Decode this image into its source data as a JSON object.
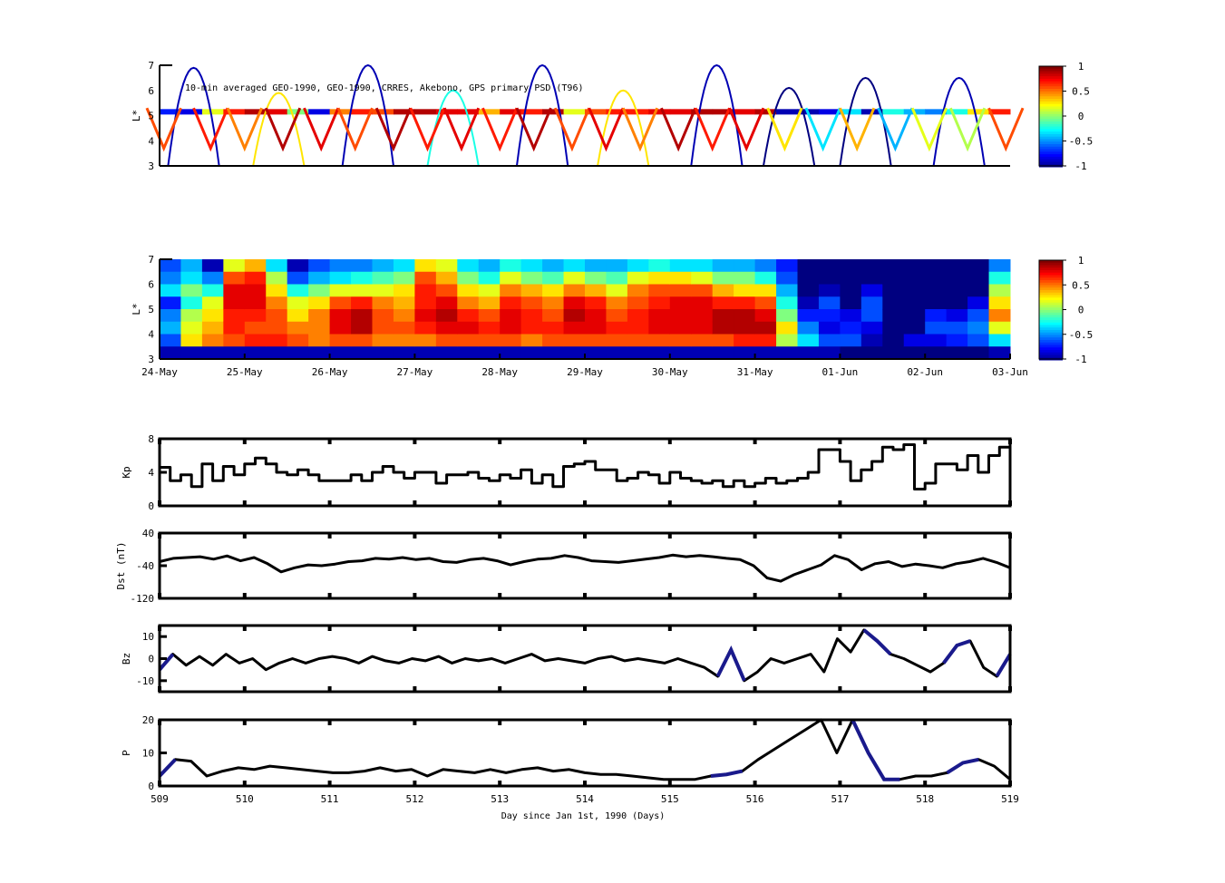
{
  "chart_data": [
    {
      "type": "heatmap",
      "title": "10-min averaged GEO-1990, GEO-1990, CRRES, Akebono, GPS  primary PSD (T96)",
      "ylabel": "L*",
      "ylim": [
        3,
        7
      ],
      "yticks": [
        "3",
        "4",
        "5",
        "6",
        "7"
      ],
      "xlim": [
        509,
        519
      ],
      "colorbar": {
        "range": [
          -1,
          1
        ],
        "ticks": [
          "1",
          "0.5",
          "0",
          "-0.5",
          "-1"
        ],
        "colormap": "jet"
      },
      "geo_track": {
        "L": 5.15,
        "step_days": 0.25,
        "values": [
          -0.7,
          -0.8,
          0.2,
          0.7,
          0.9,
          0.8,
          0.0,
          -0.8,
          0.5,
          0.7,
          0.6,
          0.9,
          0.9,
          0.8,
          0.8,
          0.4,
          0.8,
          0.7,
          0.9,
          0.2,
          0.6,
          0.7,
          0.7,
          0.8,
          0.8,
          0.9,
          0.9,
          0.8,
          0.9,
          -0.9,
          -0.9,
          -0.8,
          -0.3,
          -0.9,
          -0.2,
          -0.4,
          -0.5,
          -0.2,
          0.3,
          0.7
        ]
      },
      "gps_passes": [
        {
          "t": 509.4,
          "peak_L": 6.9,
          "value": -0.9
        },
        {
          "t": 510.4,
          "peak_L": 5.9,
          "value": 0.3
        },
        {
          "t": 511.45,
          "peak_L": 7.0,
          "value": -0.9
        },
        {
          "t": 512.45,
          "peak_L": 6.0,
          "value": -0.2
        },
        {
          "t": 513.5,
          "peak_L": 7.0,
          "value": -0.9
        },
        {
          "t": 514.45,
          "peak_L": 6.0,
          "value": 0.3
        },
        {
          "t": 515.55,
          "peak_L": 7.0,
          "value": -0.9
        },
        {
          "t": 516.4,
          "peak_L": 6.1,
          "value": -1.0
        },
        {
          "t": 517.3,
          "peak_L": 6.5,
          "value": -1.0
        },
        {
          "t": 518.4,
          "peak_L": 6.5,
          "value": -0.9
        }
      ],
      "crres_passes": [
        {
          "t": 509.05,
          "value": 0.6
        },
        {
          "t": 509.6,
          "value": 0.7
        },
        {
          "t": 510.0,
          "value": 0.5
        },
        {
          "t": 510.45,
          "value": 0.9
        },
        {
          "t": 510.9,
          "value": 0.8
        },
        {
          "t": 511.3,
          "value": 0.6
        },
        {
          "t": 511.75,
          "value": 0.9
        },
        {
          "t": 512.15,
          "value": 0.7
        },
        {
          "t": 512.55,
          "value": 0.8
        },
        {
          "t": 513.0,
          "value": 0.7
        },
        {
          "t": 513.4,
          "value": 0.9
        },
        {
          "t": 513.85,
          "value": 0.6
        },
        {
          "t": 514.25,
          "value": 0.8
        },
        {
          "t": 514.65,
          "value": 0.5
        },
        {
          "t": 515.1,
          "value": 0.9
        },
        {
          "t": 515.5,
          "value": 0.7
        },
        {
          "t": 515.9,
          "value": 0.8
        },
        {
          "t": 516.35,
          "value": 0.3
        },
        {
          "t": 516.8,
          "value": -0.3
        },
        {
          "t": 517.2,
          "value": 0.4
        },
        {
          "t": 517.65,
          "value": -0.4
        },
        {
          "t": 518.05,
          "value": 0.2
        },
        {
          "t": 518.5,
          "value": 0.1
        },
        {
          "t": 518.95,
          "value": 0.6
        }
      ]
    },
    {
      "type": "heatmap",
      "ylabel": "L*",
      "ylim": [
        3,
        7
      ],
      "yticks": [
        "3",
        "4",
        "5",
        "6",
        "7"
      ],
      "xticklabels": [
        "24-May",
        "25-May",
        "26-May",
        "27-May",
        "28-May",
        "29-May",
        "30-May",
        "31-May",
        "01-Jun",
        "02-Jun",
        "03-Jun"
      ],
      "colorbar": {
        "range": [
          -1,
          1
        ],
        "ticks": [
          "1",
          "0.5",
          "0",
          "-0.5",
          "-1"
        ],
        "colormap": "jet"
      },
      "step_days": 0.25,
      "L_bins_top_to_bottom": [
        6.75,
        6.25,
        5.75,
        5.25,
        4.75,
        4.25,
        3.75,
        3.25
      ],
      "columns": [
        [
          -0.6,
          -0.5,
          -0.3,
          -0.7,
          -0.5,
          -0.4,
          -0.6,
          -0.9
        ],
        [
          -0.4,
          -0.3,
          0,
          -0.2,
          0.1,
          0.2,
          0.3,
          -0.9
        ],
        [
          -0.9,
          -0.5,
          -0.2,
          0.2,
          0.3,
          0.4,
          0.5,
          -0.9
        ],
        [
          0.2,
          0.6,
          0.8,
          0.8,
          0.7,
          0.7,
          0.6,
          -0.9
        ],
        [
          0.4,
          0.7,
          0.8,
          0.8,
          0.7,
          0.6,
          0.7,
          -0.9
        ],
        [
          -0.3,
          0.1,
          0.3,
          0.5,
          0.6,
          0.6,
          0.7,
          -0.9
        ],
        [
          -0.9,
          -0.6,
          -0.2,
          0.2,
          0.3,
          0.5,
          0.6,
          -0.9
        ],
        [
          -0.6,
          -0.4,
          0,
          0.3,
          0.5,
          0.5,
          0.5,
          -0.9
        ],
        [
          -0.5,
          -0.3,
          0.2,
          0.6,
          0.8,
          0.8,
          0.6,
          -0.9
        ],
        [
          -0.5,
          -0.2,
          0.2,
          0.7,
          0.9,
          0.9,
          0.6,
          -0.9
        ],
        [
          -0.4,
          -0.1,
          0.2,
          0.5,
          0.6,
          0.6,
          0.5,
          -0.9
        ],
        [
          -0.3,
          0,
          0.3,
          0.4,
          0.5,
          0.6,
          0.5,
          -0.9
        ],
        [
          0.3,
          0.6,
          0.7,
          0.7,
          0.8,
          0.7,
          0.5,
          -0.9
        ],
        [
          0.2,
          0.4,
          0.6,
          0.8,
          0.9,
          0.8,
          0.6,
          -0.9
        ],
        [
          -0.3,
          0,
          0.3,
          0.5,
          0.7,
          0.8,
          0.6,
          -0.9
        ],
        [
          -0.4,
          -0.2,
          0.2,
          0.4,
          0.6,
          0.7,
          0.6,
          -0.9
        ],
        [
          -0.2,
          0.2,
          0.5,
          0.7,
          0.8,
          0.8,
          0.6,
          -0.9
        ],
        [
          -0.3,
          0,
          0.4,
          0.6,
          0.7,
          0.7,
          0.5,
          -0.9
        ],
        [
          -0.4,
          -0.1,
          0.3,
          0.5,
          0.6,
          0.7,
          0.6,
          -0.9
        ],
        [
          -0.3,
          0.2,
          0.5,
          0.8,
          0.9,
          0.8,
          0.6,
          -0.9
        ],
        [
          -0.4,
          0,
          0.4,
          0.7,
          0.8,
          0.8,
          0.6,
          -0.9
        ],
        [
          -0.4,
          -0.1,
          0.2,
          0.5,
          0.6,
          0.7,
          0.6,
          -0.9
        ],
        [
          -0.3,
          0.2,
          0.5,
          0.6,
          0.7,
          0.7,
          0.6,
          -0.9
        ],
        [
          -0.2,
          0.3,
          0.6,
          0.7,
          0.8,
          0.8,
          0.6,
          -0.9
        ],
        [
          -0.3,
          0.3,
          0.6,
          0.8,
          0.8,
          0.8,
          0.6,
          -0.9
        ],
        [
          -0.3,
          0.2,
          0.6,
          0.8,
          0.8,
          0.8,
          0.6,
          -0.9
        ],
        [
          -0.4,
          0,
          0.4,
          0.7,
          0.9,
          0.9,
          0.6,
          -0.9
        ],
        [
          -0.4,
          0,
          0.3,
          0.7,
          0.9,
          0.9,
          0.7,
          -0.9
        ],
        [
          -0.5,
          -0.2,
          0.3,
          0.6,
          0.8,
          0.9,
          0.7,
          -0.9
        ],
        [
          -0.7,
          -0.6,
          -0.4,
          -0.2,
          0,
          0.3,
          0.1,
          -0.9
        ],
        [
          -1,
          -1,
          -1,
          -0.9,
          -0.7,
          -0.5,
          -0.3,
          -0.9
        ],
        [
          -1,
          -1,
          -0.9,
          -0.6,
          -0.7,
          -0.8,
          -0.6,
          -0.9
        ],
        [
          -1,
          -1,
          -1,
          -1,
          -0.8,
          -0.7,
          -0.6,
          -1
        ],
        [
          -1,
          -1,
          -0.8,
          -0.6,
          -0.6,
          -0.8,
          -0.9,
          -1
        ],
        [
          -1,
          -1,
          -1,
          -1,
          -1,
          -1,
          -1,
          -1
        ],
        [
          -1,
          -1,
          -1,
          -1,
          -1,
          -1,
          -0.8,
          -1
        ],
        [
          -1,
          -1,
          -1,
          -1,
          -0.7,
          -0.6,
          -0.8,
          -1
        ],
        [
          -1,
          -1,
          -1,
          -1,
          -0.8,
          -0.6,
          -0.7,
          -1
        ],
        [
          -1,
          -1,
          -1,
          -0.8,
          -0.6,
          -0.5,
          -0.6,
          -1
        ],
        [
          -0.5,
          -0.2,
          0.1,
          0.3,
          0.5,
          0.2,
          -0.3,
          -0.9
        ]
      ]
    },
    {
      "type": "line",
      "ylabel": "Kp",
      "ylim": [
        0,
        8
      ],
      "yticks": [
        "0",
        "4",
        "8"
      ],
      "xlim": [
        509,
        519
      ],
      "step": true,
      "values": [
        4.6,
        3,
        3.7,
        2.3,
        5,
        3,
        4.7,
        3.7,
        5,
        5.7,
        5,
        4,
        3.7,
        4.3,
        3.7,
        3,
        3,
        3,
        3.7,
        3,
        4,
        4.7,
        4,
        3.3,
        4,
        4,
        2.7,
        3.7,
        3.7,
        4,
        3.3,
        3,
        3.7,
        3.3,
        4.3,
        2.7,
        3.7,
        2.3,
        4.7,
        5,
        5.3,
        4.3,
        4.3,
        3,
        3.3,
        4,
        3.7,
        2.7,
        4,
        3.3,
        3,
        2.7,
        3,
        2.3,
        3,
        2.3,
        2.7,
        3.3,
        2.7,
        3,
        3.3,
        4,
        6.7,
        6.7,
        5.3,
        3,
        4.3,
        5.3,
        7,
        6.7,
        7.3,
        2,
        2.7,
        5,
        5,
        4.3,
        6,
        4,
        6,
        7,
        5
      ]
    },
    {
      "type": "line",
      "ylabel": "Dst (nT)",
      "ylim": [
        -120,
        40
      ],
      "yticks": [
        "-120",
        "-40",
        "40"
      ],
      "xlim": [
        509,
        519
      ],
      "values": [
        -30,
        -22,
        -20,
        -18,
        -24,
        -16,
        -28,
        -20,
        -35,
        -55,
        -45,
        -38,
        -40,
        -36,
        -30,
        -28,
        -22,
        -24,
        -20,
        -25,
        -22,
        -30,
        -32,
        -25,
        -22,
        -28,
        -38,
        -30,
        -24,
        -22,
        -15,
        -20,
        -28,
        -30,
        -32,
        -28,
        -24,
        -20,
        -14,
        -18,
        -15,
        -18,
        -22,
        -25,
        -40,
        -70,
        -78,
        -62,
        -50,
        -38,
        -15,
        -25,
        -50,
        -35,
        -30,
        -42,
        -36,
        -40,
        -45,
        -35,
        -30,
        -22,
        -32,
        -45
      ]
    },
    {
      "type": "line",
      "ylabel": "Bz",
      "ylim": [
        -15,
        15
      ],
      "yticks": [
        "-10",
        "0",
        "10"
      ],
      "xlim": [
        509,
        519
      ],
      "values": [
        -5,
        2,
        -3,
        1,
        -3,
        2,
        -2,
        0,
        -5,
        -2,
        0,
        -2,
        0,
        1,
        0,
        -2,
        1,
        -1,
        -2,
        0,
        -1,
        1,
        -2,
        0,
        -1,
        0,
        -2,
        0,
        2,
        -1,
        0,
        -1,
        -2,
        0,
        1,
        -1,
        0,
        -1,
        -2,
        0,
        -2,
        -4,
        -8,
        4,
        -10,
        -6,
        0,
        -2,
        0,
        2,
        -6,
        9,
        3,
        13,
        8,
        2,
        0,
        -3,
        -6,
        -2,
        6,
        8,
        -4,
        -8,
        2
      ],
      "highlight_color": "#1a1a8c",
      "highlight_ranges": [
        [
          509.0,
          509.3
        ],
        [
          515.45,
          515.9
        ],
        [
          516.4,
          516.6
        ],
        [
          517.2,
          517.7
        ],
        [
          518.15,
          518.6
        ],
        [
          518.75,
          519.0
        ]
      ]
    },
    {
      "type": "line",
      "ylabel": "P",
      "ylim": [
        0,
        20
      ],
      "yticks": [
        "0",
        "10",
        "20"
      ],
      "xlim": [
        509,
        519
      ],
      "xticks": [
        "509",
        "510",
        "511",
        "512",
        "513",
        "514",
        "515",
        "516",
        "517",
        "518",
        "519"
      ],
      "xlabel": "Day since Jan 1st, 1990 (Days)",
      "values": [
        3,
        8,
        7.5,
        3,
        4.5,
        5.5,
        5,
        6,
        5.5,
        5,
        4.5,
        4,
        4,
        4.5,
        5.5,
        4.5,
        5,
        3,
        5,
        4.5,
        4,
        5,
        4,
        5,
        5.5,
        4.5,
        5,
        4,
        3.5,
        3.5,
        3,
        2.5,
        2,
        2,
        2,
        3,
        3.5,
        4.5,
        8,
        11,
        14,
        17,
        20,
        10,
        20,
        10,
        2,
        2,
        3,
        3,
        4,
        7,
        8,
        6,
        2
      ],
      "highlight_color": "#1a1a8c",
      "highlight_ranges": [
        [
          509.0,
          509.35
        ],
        [
          515.4,
          515.9
        ],
        [
          516.3,
          516.4
        ],
        [
          517.15,
          517.7
        ],
        [
          518.2,
          518.8
        ],
        [
          518.85,
          519.0
        ]
      ]
    }
  ]
}
